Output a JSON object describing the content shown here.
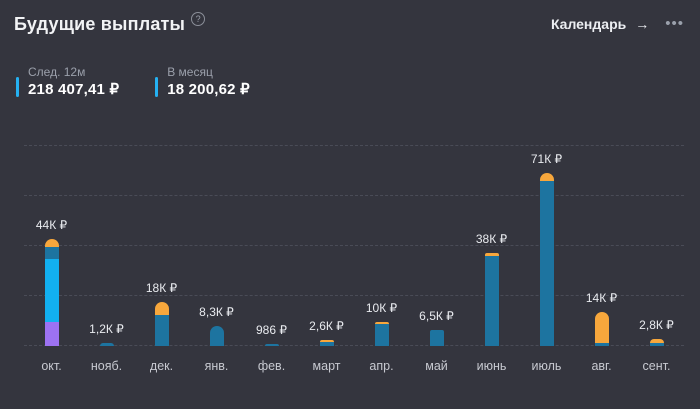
{
  "header": {
    "title": "Будущие выплаты",
    "help_icon": "?",
    "calendar_link": "Календарь",
    "arrow_icon": "→",
    "menu_icon": "•••"
  },
  "stats": [
    {
      "label": "След. 12м",
      "value": "218 407,41 ₽"
    },
    {
      "label": "В месяц",
      "value": "18 200,62 ₽"
    }
  ],
  "colors": {
    "background": "#34353e",
    "gridline": "#4a4c57",
    "accent_cyan": "#25b1f2",
    "bar_blue": "#1d74a0",
    "bar_cyan": "#12b0f0",
    "bar_purple": "#9d72f2",
    "bar_orange": "#f7a73c"
  },
  "chart_data": {
    "type": "bar",
    "stacked": true,
    "unit": "₽",
    "ylim": [
      0,
      82000
    ],
    "grid": "dashed-horizontal",
    "gridline_values": [
      0,
      20500,
      41000,
      61500,
      82000
    ],
    "categories": [
      "окт.",
      "нояб.",
      "дек.",
      "янв.",
      "фев.",
      "март",
      "апр.",
      "май",
      "июнь",
      "июль",
      "авг.",
      "сент."
    ],
    "bars": [
      {
        "month": "окт.",
        "label": "44К ₽",
        "total": 44000,
        "rounded_top": true,
        "segments": [
          {
            "color": "bar_purple",
            "value": 9800
          },
          {
            "color": "bar_cyan",
            "value": 25800
          },
          {
            "color": "bar_blue",
            "value": 4900
          },
          {
            "color": "bar_orange",
            "value": 3500
          }
        ]
      },
      {
        "month": "нояб.",
        "label": "1,2К ₽",
        "total": 1200,
        "rounded_top": true,
        "segments": [
          {
            "color": "bar_blue",
            "value": 1200
          }
        ]
      },
      {
        "month": "дек.",
        "label": "18К ₽",
        "total": 18000,
        "rounded_top": true,
        "segments": [
          {
            "color": "bar_blue",
            "value": 12700
          },
          {
            "color": "bar_orange",
            "value": 5300
          }
        ]
      },
      {
        "month": "янв.",
        "label": "8,3К ₽",
        "total": 8300,
        "rounded_top": true,
        "segments": [
          {
            "color": "bar_blue",
            "value": 8300
          }
        ]
      },
      {
        "month": "фев.",
        "label": "986 ₽",
        "total": 986,
        "rounded_top": true,
        "segments": [
          {
            "color": "bar_blue",
            "value": 986
          }
        ]
      },
      {
        "month": "март",
        "label": "2,6К ₽",
        "total": 2600,
        "rounded_top": true,
        "segments": [
          {
            "color": "bar_blue",
            "value": 1700
          },
          {
            "color": "bar_orange",
            "value": 900
          }
        ]
      },
      {
        "month": "апр.",
        "label": "10К ₽",
        "total": 10000,
        "rounded_top": false,
        "segments": [
          {
            "color": "bar_blue",
            "value": 9200
          },
          {
            "color": "bar_orange",
            "value": 800
          }
        ]
      },
      {
        "month": "май",
        "label": "6,5К ₽",
        "total": 6500,
        "rounded_top": false,
        "segments": [
          {
            "color": "bar_blue",
            "value": 6500
          }
        ]
      },
      {
        "month": "июнь",
        "label": "38К ₽",
        "total": 38000,
        "rounded_top": false,
        "segments": [
          {
            "color": "bar_blue",
            "value": 37000
          },
          {
            "color": "bar_orange",
            "value": 1000
          }
        ]
      },
      {
        "month": "июль",
        "label": "71К ₽",
        "total": 71000,
        "rounded_top": true,
        "segments": [
          {
            "color": "bar_blue",
            "value": 67700
          },
          {
            "color": "bar_orange",
            "value": 3300
          }
        ]
      },
      {
        "month": "авг.",
        "label": "14К ₽",
        "total": 14000,
        "rounded_top": true,
        "segments": [
          {
            "color": "bar_blue",
            "value": 1300
          },
          {
            "color": "bar_orange",
            "value": 12700
          }
        ]
      },
      {
        "month": "сент.",
        "label": "2,8К ₽",
        "total": 2800,
        "rounded_top": true,
        "segments": [
          {
            "color": "bar_blue",
            "value": 1200
          },
          {
            "color": "bar_orange",
            "value": 1600
          }
        ]
      }
    ]
  }
}
